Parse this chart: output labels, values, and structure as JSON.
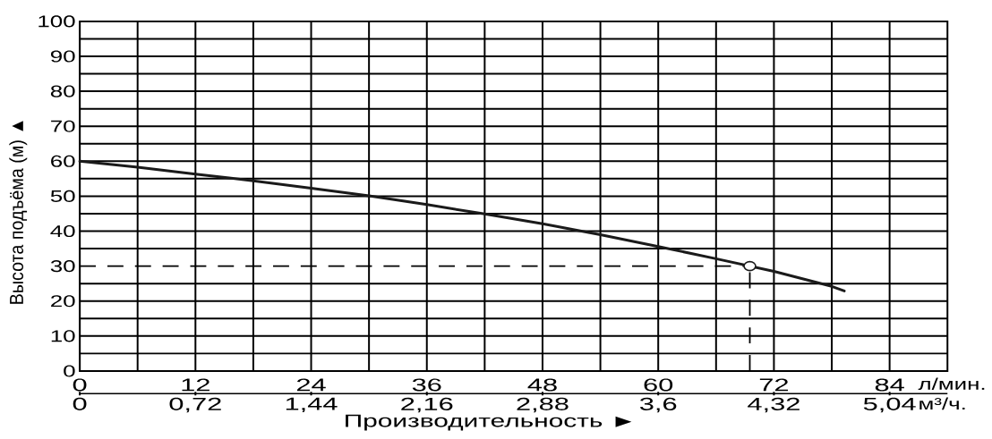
{
  "chart_data": {
    "type": "line",
    "xlabel": "Производительность ►",
    "ylabel": "Высота подъёма (м) ▲",
    "annotations": [
      "л/мин.",
      "м³/ч."
    ],
    "xlim": [
      0,
      90
    ],
    "xticks": [
      0,
      {
        "value": 6,
        "label": null
      },
      12,
      {
        "value": 18,
        "label": null
      },
      24,
      {
        "value": 30,
        "label": null
      },
      36,
      {
        "value": 42,
        "label": null
      },
      48,
      {
        "value": 54,
        "label": null
      },
      60,
      {
        "value": 66,
        "label": null
      },
      72,
      {
        "value": 78,
        "label": null
      },
      84
    ],
    "ylim": [
      0,
      100
    ],
    "yticks": [
      0,
      {
        "value": 5,
        "label": null
      },
      10,
      {
        "value": 15,
        "label": null
      },
      20,
      {
        "value": 25,
        "label": null
      },
      30,
      {
        "value": 35,
        "label": null
      },
      40,
      {
        "value": 45,
        "label": null
      },
      50,
      {
        "value": 55,
        "label": null
      },
      60,
      {
        "value": 65,
        "label": null
      },
      70,
      {
        "value": 75,
        "label": null
      },
      80,
      {
        "value": 85,
        "label": null
      },
      90,
      {
        "value": 95,
        "label": null
      },
      100
    ],
    "x2lim": [
      0,
      5.4
    ],
    "x2ticks": [
      0,
      {
        "value": 0.72,
        "label": "0,72"
      },
      {
        "value": 1.44,
        "label": "1,44"
      },
      {
        "value": 2.16,
        "label": "2,16"
      },
      {
        "value": 2.88,
        "label": "2,88"
      },
      {
        "value": 3.6,
        "label": "3,6"
      },
      {
        "value": 4.32,
        "label": "4,32"
      },
      {
        "value": 5.04,
        "label": "5,04"
      }
    ],
    "grid": true,
    "series": [
      {
        "color": "#1a1a1a",
        "x": [
          0,
          6,
          12,
          18,
          24,
          30,
          36,
          42,
          48,
          54,
          60,
          66,
          72,
          78,
          79.3
        ],
        "values": [
          60,
          58.3,
          56.3,
          54.4,
          52.3,
          50.1,
          47.6,
          44.9,
          42.1,
          39.0,
          35.6,
          32.1,
          28.5,
          24.2,
          22.9
        ]
      },
      {
        "type": "scatter",
        "color": "#1a1a1a",
        "marker": "circle",
        "x": [
          69.5
        ],
        "values": [
          30
        ]
      }
    ],
    "ref_lines": [
      {
        "axis": "y",
        "value": 30,
        "line_style": "dashed"
      },
      {
        "axis": "x",
        "value": 69.5,
        "line_style": "dashed"
      }
    ]
  }
}
